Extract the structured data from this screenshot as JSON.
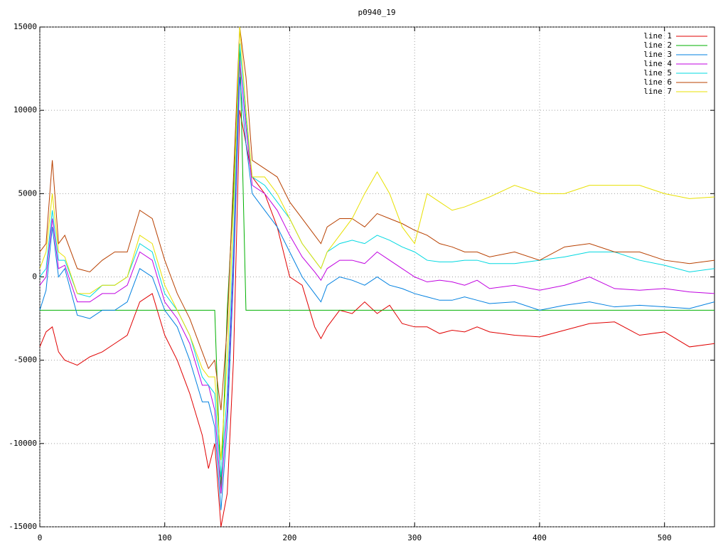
{
  "chart_data": {
    "type": "line",
    "title": "p0940_19",
    "x": [
      0,
      5,
      10,
      15,
      20,
      30,
      40,
      50,
      60,
      70,
      80,
      90,
      100,
      110,
      120,
      130,
      135,
      140,
      145,
      150,
      155,
      160,
      165,
      170,
      180,
      190,
      200,
      210,
      220,
      225,
      230,
      240,
      250,
      260,
      270,
      280,
      290,
      300,
      310,
      320,
      330,
      340,
      350,
      360,
      380,
      400,
      420,
      440,
      460,
      480,
      500,
      520,
      540
    ],
    "xlim": [
      0,
      540
    ],
    "xticks": [
      0,
      100,
      200,
      300,
      400,
      500
    ],
    "ylim": [
      -15000,
      15000
    ],
    "yticks": [
      -15000,
      -10000,
      -5000,
      0,
      5000,
      10000,
      15000
    ],
    "grid": true,
    "legend": "top-right",
    "series": [
      {
        "name": "line 1",
        "color": "#e00000",
        "values": [
          -4200,
          -3300,
          -3000,
          -4500,
          -5000,
          -5300,
          -4800,
          -4500,
          -4000,
          -3500,
          -1500,
          -1000,
          -3500,
          -5000,
          -7000,
          -9500,
          -11500,
          -10000,
          -15000,
          -13000,
          -5000,
          10000,
          8000,
          6000,
          5000,
          3000,
          0,
          -500,
          -3000,
          -3700,
          -3000,
          -2000,
          -2200,
          -1500,
          -2200,
          -1700,
          -2800,
          -3000,
          -3000,
          -3400,
          -3200,
          -3300,
          -3000,
          -3300,
          -3500,
          -3600,
          -3200,
          -2800,
          -2700,
          -3500,
          -3300,
          -4200,
          -4000
        ]
      },
      {
        "name": "line 2",
        "color": "#00b000",
        "values": [
          -2000,
          -2000,
          -2000,
          -2000,
          -2000,
          -2000,
          -2000,
          -2000,
          -2000,
          -2000,
          -2000,
          -2000,
          -2000,
          -2000,
          -2000,
          -2000,
          -2000,
          -2000,
          -13000,
          -2000,
          5000,
          14000,
          -2000,
          -2000,
          -2000,
          -2000,
          -2000,
          -2000,
          -2000,
          -2000,
          -2000,
          -2000,
          -2000,
          -2000,
          -2000,
          -2000,
          -2000,
          -2000,
          -2000,
          -2000,
          -2000,
          -2000,
          -2000,
          -2000,
          -2000,
          -2000,
          -2000,
          -2000,
          -2000,
          -2000,
          -2000,
          -2000,
          -2000
        ]
      },
      {
        "name": "line 3",
        "color": "#0080e0",
        "values": [
          -2000,
          -800,
          3000,
          0,
          500,
          -2300,
          -2500,
          -2000,
          -2000,
          -1500,
          500,
          0,
          -2000,
          -3000,
          -5000,
          -7500,
          -7500,
          -9000,
          -14000,
          -9000,
          0,
          12000,
          8000,
          5000,
          4000,
          3000,
          1500,
          0,
          -1000,
          -1500,
          -500,
          0,
          -200,
          -500,
          0,
          -500,
          -700,
          -1000,
          -1200,
          -1400,
          -1400,
          -1200,
          -1400,
          -1600,
          -1500,
          -2000,
          -1700,
          -1500,
          -1800,
          -1700,
          -1800,
          -1900,
          -1500
        ]
      },
      {
        "name": "line 4",
        "color": "#c000e0",
        "values": [
          -500,
          0,
          3500,
          500,
          700,
          -1500,
          -1500,
          -1000,
          -1000,
          -500,
          1500,
          1000,
          -1500,
          -2500,
          -4000,
          -6500,
          -6500,
          -8000,
          -13000,
          -8000,
          1000,
          13000,
          9000,
          5500,
          5000,
          4000,
          2500,
          1200,
          300,
          -200,
          500,
          1000,
          1000,
          800,
          1500,
          1000,
          500,
          0,
          -300,
          -200,
          -300,
          -500,
          -200,
          -700,
          -500,
          -800,
          -500,
          0,
          -700,
          -800,
          -700,
          -900,
          -1000
        ]
      },
      {
        "name": "line 5",
        "color": "#00d8e0",
        "values": [
          0,
          500,
          4000,
          1000,
          1000,
          -1000,
          -1200,
          -500,
          -500,
          0,
          2000,
          1500,
          -1000,
          -2000,
          -3500,
          -6000,
          -6500,
          -7000,
          -12000,
          -7000,
          2000,
          14000,
          9500,
          6000,
          5500,
          4500,
          3500,
          2000,
          1000,
          500,
          1500,
          2000,
          2200,
          2000,
          2500,
          2200,
          1800,
          1500,
          1000,
          900,
          900,
          1000,
          1000,
          800,
          800,
          1000,
          1200,
          1500,
          1500,
          1000,
          700,
          300,
          500
        ]
      },
      {
        "name": "line 6",
        "color": "#b84000",
        "values": [
          1500,
          2000,
          7000,
          2000,
          2500,
          500,
          300,
          1000,
          1500,
          1500,
          4000,
          3500,
          1000,
          -1000,
          -2500,
          -4500,
          -5500,
          -5000,
          -8000,
          -3000,
          6000,
          15000,
          12000,
          7000,
          6500,
          6000,
          4500,
          3500,
          2500,
          2000,
          3000,
          3500,
          3500,
          3000,
          3800,
          3500,
          3200,
          2800,
          2500,
          2000,
          1800,
          1500,
          1500,
          1200,
          1500,
          1000,
          1800,
          2000,
          1500,
          1500,
          1000,
          800,
          1000
        ]
      },
      {
        "name": "line 7",
        "color": "#e8e000",
        "values": [
          500,
          1500,
          5000,
          1500,
          1200,
          -1000,
          -1000,
          -500,
          -500,
          0,
          2500,
          2000,
          -500,
          -2000,
          -3500,
          -5500,
          -6000,
          -6000,
          -11000,
          -5000,
          4000,
          15000,
          10000,
          6000,
          6000,
          5000,
          3500,
          2000,
          1000,
          500,
          1500,
          2500,
          3500,
          5000,
          6300,
          5000,
          3000,
          2000,
          5000,
          4500,
          4000,
          4200,
          4500,
          4800,
          5500,
          5000,
          5000,
          5500,
          5500,
          5500,
          5000,
          4700,
          4800
        ]
      }
    ]
  }
}
